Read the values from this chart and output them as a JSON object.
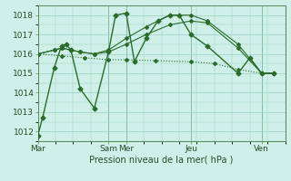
{
  "bg_color": "#cef0e8",
  "grid_color": "#9dcfbf",
  "line_color": "#2d6b2d",
  "title": "Pression niveau de la mer( hPa )",
  "ylim": [
    1011.5,
    1018.5
  ],
  "yticks": [
    1012,
    1013,
    1014,
    1015,
    1016,
    1017,
    1018
  ],
  "x_tick_pos": [
    0,
    3.0,
    3.75,
    6.5,
    9.5
  ],
  "x_tick_names": [
    "Mar",
    "Sam",
    "Mer",
    "Jeu",
    "Ven"
  ],
  "vlines": [
    0,
    3.0,
    3.75,
    6.5,
    9.5
  ],
  "xlim": [
    0,
    10.5
  ],
  "series": [
    {
      "x": [
        0.0,
        0.2,
        0.7,
        1.0,
        1.2,
        1.4,
        1.8,
        2.4,
        3.0,
        3.3,
        3.75,
        4.1,
        4.6,
        5.1,
        5.6,
        6.0,
        6.5,
        7.2,
        8.5,
        9.0,
        9.5,
        10.0
      ],
      "y": [
        1011.8,
        1012.7,
        1015.3,
        1016.4,
        1016.5,
        1016.2,
        1014.2,
        1013.2,
        1016.1,
        1018.0,
        1018.1,
        1015.6,
        1016.8,
        1017.7,
        1018.0,
        1018.0,
        1017.0,
        1016.4,
        1015.0,
        1015.8,
        1015.0,
        1015.0
      ],
      "marker": "D",
      "markersize": 2.5,
      "linewidth": 1.0,
      "linestyle": "-"
    },
    {
      "x": [
        0.0,
        0.7,
        1.0,
        1.4,
        1.8,
        2.4,
        3.0,
        3.75,
        4.6,
        5.6,
        6.5,
        7.2,
        8.5,
        9.5,
        10.0
      ],
      "y": [
        1016.0,
        1016.2,
        1016.3,
        1016.2,
        1016.1,
        1016.0,
        1016.1,
        1016.5,
        1017.0,
        1017.5,
        1017.7,
        1017.6,
        1016.3,
        1015.0,
        1015.0
      ],
      "marker": "D",
      "markersize": 2.0,
      "linewidth": 0.8,
      "linestyle": "-"
    },
    {
      "x": [
        0.0,
        0.7,
        1.0,
        1.4,
        1.8,
        2.4,
        3.0,
        3.75,
        4.6,
        5.6,
        6.5,
        7.2,
        8.5,
        9.5,
        10.0
      ],
      "y": [
        1016.0,
        1016.2,
        1016.3,
        1016.2,
        1016.1,
        1016.0,
        1016.2,
        1016.8,
        1017.4,
        1018.0,
        1018.0,
        1017.7,
        1016.5,
        1015.0,
        1015.0
      ],
      "marker": "D",
      "markersize": 2.0,
      "linewidth": 0.8,
      "linestyle": "-"
    },
    {
      "x": [
        0.0,
        1.0,
        2.0,
        3.0,
        3.75,
        5.0,
        6.5,
        7.5,
        8.5,
        9.5,
        10.0
      ],
      "y": [
        1016.0,
        1015.9,
        1015.8,
        1015.7,
        1015.7,
        1015.65,
        1015.6,
        1015.5,
        1015.2,
        1015.0,
        1015.0
      ],
      "marker": "D",
      "markersize": 2.0,
      "linewidth": 0.8,
      "linestyle": ":"
    }
  ]
}
